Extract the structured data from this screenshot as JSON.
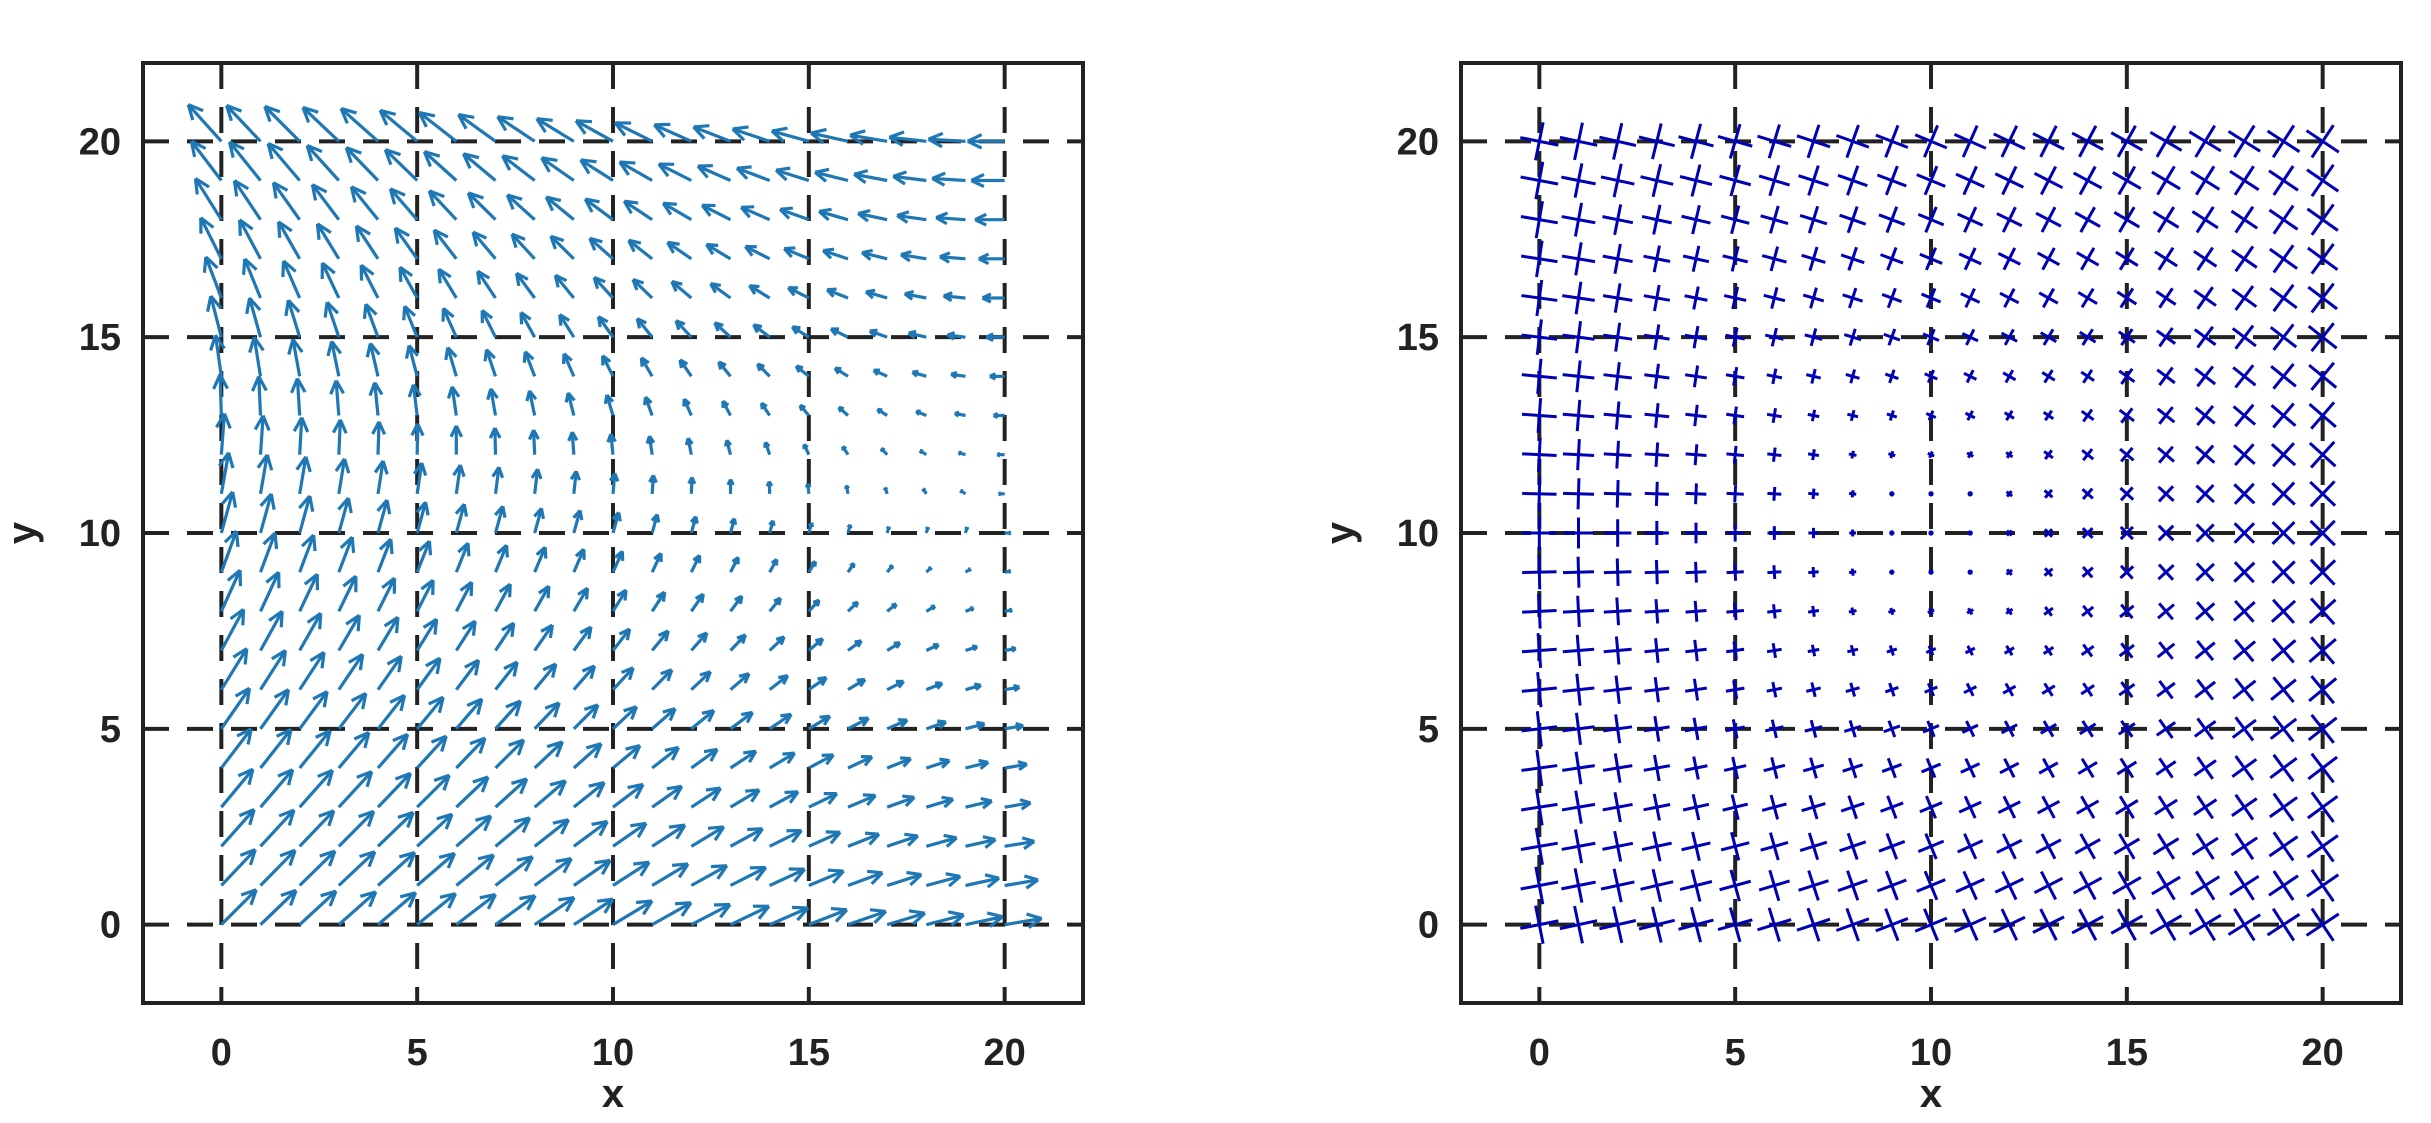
{
  "chart_data": [
    {
      "type": "quiver",
      "xlabel": "x",
      "ylabel": "y",
      "xlim": [
        -2,
        22
      ],
      "ylim": [
        -2,
        22
      ],
      "xticks": [
        "0",
        "5",
        "10",
        "15",
        "20"
      ],
      "yticks": [
        "0",
        "5",
        "10",
        "15",
        "20"
      ],
      "grid": true,
      "color": "#1f77b4",
      "grid_points": {
        "x_start": 0,
        "x_end": 20,
        "x_step": 1,
        "y_start": 0,
        "y_end": 20,
        "y_step": 1
      },
      "field_description": "vector field; arrows near (0,0) point up-right, near (0,20) point up-left, near (20,0) point right, near (20,20) point left; magnitude smallest near (20,10)"
    },
    {
      "type": "tensor-glyph",
      "xlabel": "x",
      "ylabel": "y",
      "xlim": [
        -2,
        22
      ],
      "ylim": [
        -2,
        22
      ],
      "xticks": [
        "0",
        "5",
        "10",
        "15",
        "20"
      ],
      "yticks": [
        "0",
        "5",
        "10",
        "15",
        "20"
      ],
      "grid": true,
      "color": "#0000b4",
      "grid_points": {
        "x_start": 0,
        "x_end": 20,
        "x_step": 1,
        "y_start": 0,
        "y_end": 20,
        "y_step": 1
      },
      "field_description": "cross glyphs at each grid point; size grows with distance from center (10,10), largest at the boundary"
    }
  ]
}
